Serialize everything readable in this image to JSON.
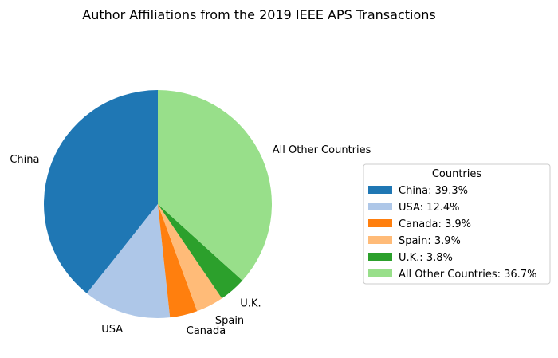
{
  "chart_data": {
    "type": "pie",
    "title": "Author Affiliations from the 2019 IEEE APS Transactions",
    "slices": [
      {
        "label": "China",
        "value": 39.3,
        "color": "#1f77b4",
        "legend": "China: 39.3%"
      },
      {
        "label": "USA",
        "value": 12.4,
        "color": "#aec7e8",
        "legend": "USA: 12.4%"
      },
      {
        "label": "Canada",
        "value": 3.9,
        "color": "#ff7f0e",
        "legend": "Canada: 3.9%"
      },
      {
        "label": "Spain",
        "value": 3.9,
        "color": "#ffbb78",
        "legend": "Spain: 3.9%"
      },
      {
        "label": "U.K.",
        "value": 3.8,
        "color": "#2ca02c",
        "legend": "U.K.: 3.8%"
      },
      {
        "label": "All Other Countries",
        "value": 36.7,
        "color": "#98df8a",
        "legend": "All Other Countries: 36.7%"
      }
    ],
    "start_angle_deg": 90,
    "direction": "counterclockwise",
    "legend": {
      "title": "Countries",
      "placement": "right"
    }
  }
}
